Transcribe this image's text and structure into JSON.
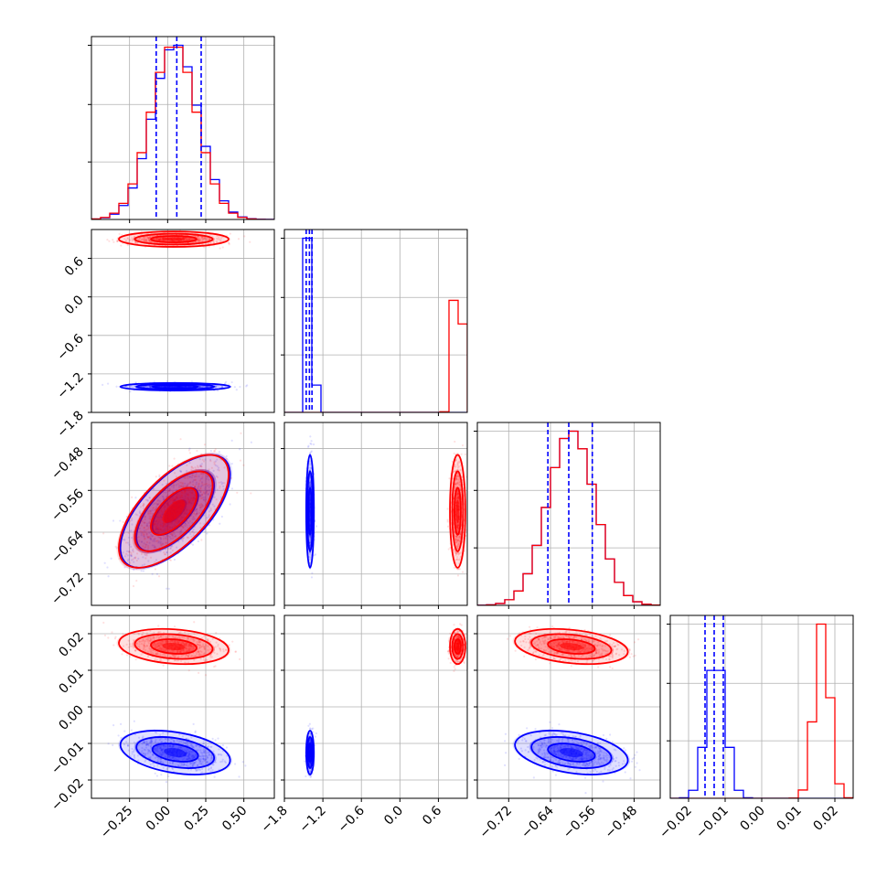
{
  "colors": {
    "blue": "#0000ff",
    "red": "#ff0000",
    "grid": "#b0b0b0"
  },
  "chart_data": {
    "type": "corner",
    "parameters": [
      {
        "name": "",
        "range": [
          -0.5,
          0.7
        ],
        "ticks": [
          -0.25,
          0.0,
          0.25,
          0.5
        ],
        "tick_labels": [
          "−0.25",
          "0.00",
          "0.25",
          "0.50"
        ]
      },
      {
        "name": "",
        "range": [
          -1.8,
          1.05
        ],
        "ticks": [
          -1.8,
          -1.2,
          -0.6,
          0.0,
          0.6
        ],
        "tick_labels": [
          "−1.8",
          "−1.2",
          "−0.6",
          "0.0",
          "0.6"
        ]
      },
      {
        "name": "",
        "range": [
          -0.78,
          -0.43
        ],
        "ticks": [
          -0.72,
          -0.64,
          -0.56,
          -0.48
        ],
        "tick_labels": [
          "−0.72",
          "−0.64",
          "−0.56",
          "−0.48"
        ]
      },
      {
        "name": "",
        "range": [
          -0.025,
          0.025
        ],
        "ticks": [
          -0.02,
          -0.01,
          0.0,
          0.01,
          0.02
        ],
        "tick_labels": [
          "−0.02",
          "−0.01",
          "0.00",
          "0.01",
          "0.02"
        ]
      }
    ],
    "series": [
      {
        "color": "blue",
        "means": [
          0.05,
          -1.4,
          -0.6,
          -0.0125
        ],
        "stds": [
          0.15,
          0.025,
          0.045,
          0.0025
        ],
        "correlations": [
          [
            0,
            2,
            0.65
          ],
          [
            0,
            3,
            -0.35
          ],
          [
            2,
            3,
            -0.35
          ]
        ],
        "quantiles": [
          [
            -0.075,
            0.06,
            0.22
          ],
          [
            -1.46,
            -1.41,
            -1.37
          ],
          [
            -0.645,
            -0.605,
            -0.56
          ],
          [
            -0.0155,
            -0.013,
            -0.0105
          ]
        ]
      },
      {
        "color": "red",
        "means": [
          0.04,
          0.9,
          -0.6,
          0.0165
        ],
        "stds": [
          0.15,
          0.05,
          0.045,
          0.002
        ],
        "correlations": [
          [
            0,
            2,
            0.65
          ],
          [
            0,
            3,
            -0.2
          ],
          [
            2,
            3,
            -0.3
          ]
        ]
      }
    ],
    "hist_bins": 20,
    "grid": true,
    "contour_levels": 3,
    "scatter_points": true
  }
}
